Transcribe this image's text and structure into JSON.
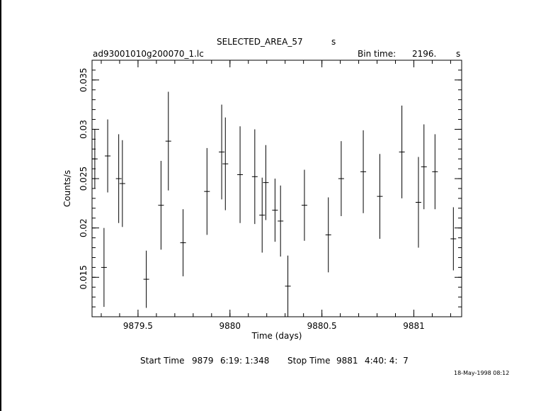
{
  "header": {
    "title": "SELECTED_AREA_57",
    "title_unit": "s",
    "filename": "ad93001010g200070_1.lc",
    "bin_label": "Bin time:",
    "bin_value": "2196.",
    "bin_unit": "s"
  },
  "footer": {
    "start_label": "Start Time",
    "start_day": "9879",
    "start_time": "6:19: 1:348",
    "stop_label": "Stop Time",
    "stop_day": "9881",
    "stop_time": "4:40: 4:  7",
    "timestamp": "18-May-1998 08:12"
  },
  "chart_data": {
    "type": "scatter",
    "xlabel": "Time (days)",
    "ylabel": "Counts/s",
    "xlim": [
      9879.25,
      9881.26
    ],
    "ylim": [
      0.011,
      0.037
    ],
    "xticks": [
      9879.5,
      9880,
      9880.5,
      9881
    ],
    "xtick_labels": [
      "9879.5",
      "9880",
      "9880.5",
      "9881"
    ],
    "yticks": [
      0.015,
      0.02,
      0.025,
      0.03,
      0.035
    ],
    "ytick_labels": [
      "0.015",
      "0.02",
      "0.025",
      "0.03",
      "0.035"
    ],
    "points": [
      {
        "x": 9879.265,
        "y": 0.027,
        "err": 0.003
      },
      {
        "x": 9879.315,
        "y": 0.016,
        "err": 0.004
      },
      {
        "x": 9879.335,
        "y": 0.0273,
        "err": 0.0037
      },
      {
        "x": 9879.395,
        "y": 0.025,
        "err": 0.0045
      },
      {
        "x": 9879.415,
        "y": 0.0245,
        "err": 0.0044
      },
      {
        "x": 9879.545,
        "y": 0.0148,
        "err": 0.0029
      },
      {
        "x": 9879.625,
        "y": 0.0223,
        "err": 0.0045
      },
      {
        "x": 9879.665,
        "y": 0.0288,
        "err": 0.005
      },
      {
        "x": 9879.745,
        "y": 0.0185,
        "err": 0.0034
      },
      {
        "x": 9879.875,
        "y": 0.0237,
        "err": 0.0044
      },
      {
        "x": 9879.955,
        "y": 0.0277,
        "err": 0.0048
      },
      {
        "x": 9879.975,
        "y": 0.0265,
        "err": 0.0047
      },
      {
        "x": 9880.055,
        "y": 0.0254,
        "err": 0.0049
      },
      {
        "x": 9880.135,
        "y": 0.0252,
        "err": 0.0048
      },
      {
        "x": 9880.175,
        "y": 0.0213,
        "err": 0.0038
      },
      {
        "x": 9880.195,
        "y": 0.0246,
        "err": 0.0038
      },
      {
        "x": 9880.245,
        "y": 0.0218,
        "err": 0.0032
      },
      {
        "x": 9880.275,
        "y": 0.0207,
        "err": 0.0036
      },
      {
        "x": 9880.315,
        "y": 0.0141,
        "err": 0.0031
      },
      {
        "x": 9880.405,
        "y": 0.0223,
        "err": 0.0036
      },
      {
        "x": 9880.535,
        "y": 0.0193,
        "err": 0.0038
      },
      {
        "x": 9880.605,
        "y": 0.025,
        "err": 0.0038
      },
      {
        "x": 9880.725,
        "y": 0.0257,
        "err": 0.0042
      },
      {
        "x": 9880.815,
        "y": 0.0232,
        "err": 0.0043
      },
      {
        "x": 9880.935,
        "y": 0.0277,
        "err": 0.0047
      },
      {
        "x": 9881.025,
        "y": 0.0226,
        "err": 0.0046
      },
      {
        "x": 9881.055,
        "y": 0.0262,
        "err": 0.0043
      },
      {
        "x": 9881.115,
        "y": 0.0257,
        "err": 0.0038
      },
      {
        "x": 9881.215,
        "y": 0.0189,
        "err": 0.0032
      }
    ]
  }
}
